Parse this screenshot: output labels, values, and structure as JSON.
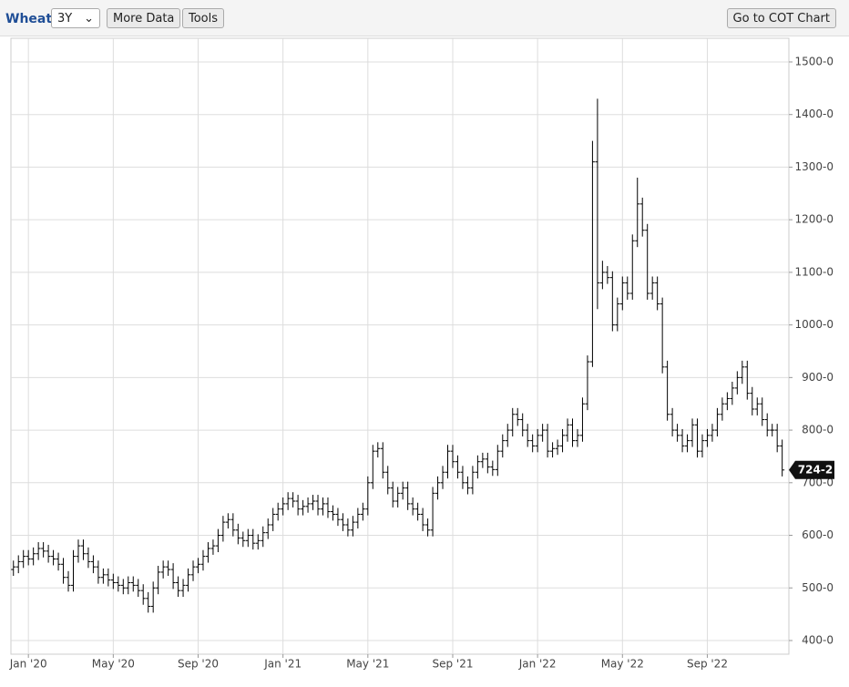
{
  "toolbar": {
    "symbol": "Wheat",
    "range": "3Y",
    "buttons": [
      "More Data",
      "Tools"
    ],
    "cot": "Go to COT Chart"
  },
  "chart_data": {
    "type": "ohlc",
    "categories": [
      null,
      null,
      null,
      "Jan '20",
      null,
      null,
      null,
      null,
      null,
      null,
      null,
      null,
      null,
      null,
      null,
      null,
      null,
      null,
      null,
      null,
      "May '20",
      null,
      null,
      null,
      null,
      null,
      null,
      null,
      null,
      null,
      null,
      null,
      null,
      null,
      null,
      null,
      null,
      "Sep '20",
      null,
      null,
      null,
      null,
      null,
      null,
      null,
      null,
      null,
      null,
      null,
      null,
      null,
      null,
      null,
      null,
      "Jan '21",
      null,
      null,
      null,
      null,
      null,
      null,
      null,
      null,
      null,
      null,
      null,
      null,
      null,
      null,
      null,
      null,
      "May '21",
      null,
      null,
      null,
      null,
      null,
      null,
      null,
      null,
      null,
      null,
      null,
      null,
      null,
      null,
      null,
      null,
      "Sep '21",
      null,
      null,
      null,
      null,
      null,
      null,
      null,
      null,
      null,
      null,
      null,
      null,
      null,
      null,
      null,
      null,
      "Jan '22",
      null,
      null,
      null,
      null,
      null,
      null,
      null,
      null,
      null,
      null,
      null,
      null,
      null,
      null,
      null,
      null,
      "May '22",
      null,
      null,
      null,
      null,
      null,
      null,
      null,
      null,
      null,
      null,
      null,
      null,
      null,
      null,
      null,
      null,
      "Sep '22",
      null,
      null,
      null,
      null,
      null,
      null,
      null,
      null,
      null,
      null,
      null,
      null,
      null,
      null,
      null
    ],
    "open": [
      535,
      540,
      550,
      560,
      555,
      565,
      575,
      570,
      560,
      555,
      545,
      520,
      505,
      560,
      580,
      565,
      550,
      540,
      520,
      525,
      515,
      510,
      505,
      500,
      510,
      505,
      495,
      480,
      465,
      500,
      530,
      540,
      535,
      510,
      495,
      505,
      525,
      540,
      545,
      560,
      575,
      580,
      600,
      625,
      630,
      610,
      595,
      590,
      600,
      585,
      590,
      605,
      620,
      640,
      650,
      660,
      670,
      665,
      650,
      655,
      660,
      665,
      650,
      660,
      645,
      640,
      630,
      620,
      610,
      625,
      640,
      650,
      700,
      760,
      765,
      720,
      690,
      665,
      680,
      690,
      660,
      650,
      640,
      620,
      610,
      680,
      700,
      720,
      760,
      740,
      720,
      700,
      690,
      720,
      740,
      745,
      730,
      725,
      760,
      780,
      800,
      830,
      820,
      800,
      780,
      770,
      790,
      800,
      760,
      765,
      770,
      790,
      810,
      780,
      790,
      850,
      930,
      1310,
      1080,
      1100,
      1090,
      1000,
      1040,
      1080,
      1060,
      1160,
      1230,
      1180,
      1060,
      1080,
      1040,
      920,
      830,
      800,
      790,
      770,
      780,
      810,
      760,
      780,
      790,
      800,
      830,
      850,
      860,
      880,
      900,
      920,
      870,
      840,
      850,
      820,
      800,
      800,
      770
    ],
    "high": [
      552,
      562,
      572,
      572,
      577,
      587,
      587,
      582,
      572,
      567,
      557,
      532,
      572,
      592,
      592,
      577,
      562,
      552,
      537,
      537,
      527,
      522,
      517,
      522,
      522,
      517,
      507,
      492,
      512,
      542,
      552,
      552,
      547,
      522,
      517,
      537,
      552,
      557,
      572,
      587,
      592,
      612,
      637,
      642,
      642,
      622,
      607,
      612,
      612,
      602,
      617,
      632,
      652,
      662,
      672,
      682,
      682,
      677,
      667,
      672,
      677,
      677,
      672,
      672,
      657,
      652,
      642,
      632,
      637,
      652,
      662,
      712,
      772,
      777,
      777,
      732,
      702,
      692,
      702,
      702,
      672,
      662,
      652,
      632,
      692,
      712,
      732,
      772,
      772,
      752,
      732,
      712,
      732,
      752,
      757,
      757,
      742,
      772,
      792,
      812,
      842,
      842,
      832,
      812,
      792,
      802,
      812,
      812,
      777,
      782,
      802,
      822,
      822,
      802,
      862,
      942,
      1350,
      1430,
      1122,
      1112,
      1102,
      1052,
      1092,
      1092,
      1172,
      1280,
      1242,
      1192,
      1092,
      1092,
      1052,
      932,
      842,
      812,
      802,
      792,
      822,
      822,
      792,
      802,
      812,
      842,
      862,
      872,
      892,
      912,
      932,
      932,
      882,
      862,
      862,
      832,
      812,
      812,
      782
    ],
    "low": [
      523,
      528,
      538,
      543,
      543,
      553,
      558,
      548,
      543,
      533,
      508,
      493,
      493,
      548,
      553,
      538,
      528,
      508,
      508,
      503,
      498,
      493,
      488,
      488,
      493,
      483,
      468,
      453,
      453,
      488,
      518,
      523,
      498,
      483,
      483,
      493,
      513,
      528,
      533,
      548,
      563,
      568,
      588,
      613,
      598,
      583,
      578,
      578,
      573,
      573,
      578,
      593,
      608,
      628,
      638,
      648,
      653,
      638,
      638,
      643,
      648,
      638,
      638,
      633,
      628,
      618,
      608,
      598,
      598,
      613,
      628,
      638,
      688,
      748,
      708,
      678,
      653,
      653,
      668,
      648,
      638,
      628,
      608,
      598,
      598,
      668,
      688,
      708,
      728,
      708,
      688,
      678,
      678,
      708,
      728,
      718,
      713,
      713,
      748,
      768,
      788,
      808,
      788,
      768,
      758,
      758,
      778,
      748,
      748,
      753,
      758,
      778,
      768,
      768,
      778,
      838,
      920,
      1030,
      1068,
      1078,
      988,
      988,
      1028,
      1048,
      1048,
      1148,
      1168,
      1048,
      1048,
      1028,
      908,
      818,
      788,
      778,
      758,
      758,
      768,
      748,
      748,
      768,
      778,
      788,
      818,
      838,
      848,
      868,
      888,
      858,
      828,
      828,
      808,
      788,
      788,
      758,
      712
    ],
    "close": [
      540,
      550,
      560,
      555,
      565,
      575,
      570,
      560,
      555,
      545,
      520,
      505,
      560,
      580,
      565,
      550,
      540,
      520,
      525,
      515,
      510,
      505,
      500,
      510,
      505,
      495,
      480,
      465,
      500,
      530,
      540,
      535,
      510,
      495,
      505,
      525,
      540,
      545,
      560,
      575,
      580,
      600,
      625,
      630,
      610,
      595,
      590,
      600,
      585,
      590,
      605,
      620,
      640,
      650,
      660,
      670,
      665,
      650,
      655,
      660,
      665,
      650,
      660,
      645,
      640,
      630,
      620,
      610,
      625,
      640,
      650,
      700,
      760,
      765,
      720,
      690,
      665,
      680,
      690,
      660,
      650,
      640,
      620,
      610,
      680,
      700,
      720,
      760,
      740,
      720,
      700,
      690,
      720,
      740,
      745,
      730,
      725,
      760,
      780,
      800,
      830,
      820,
      800,
      780,
      770,
      790,
      800,
      760,
      765,
      770,
      790,
      810,
      780,
      790,
      850,
      930,
      1310,
      1080,
      1100,
      1090,
      1000,
      1040,
      1080,
      1060,
      1160,
      1230,
      1180,
      1060,
      1080,
      1040,
      920,
      830,
      800,
      790,
      770,
      780,
      810,
      760,
      780,
      790,
      800,
      830,
      850,
      860,
      880,
      900,
      920,
      870,
      840,
      850,
      820,
      800,
      800,
      770,
      724.25
    ],
    "last_label": "724-2",
    "color": "#000000",
    "ylim": [
      374,
      1545
    ],
    "yticks": [
      {
        "value": 400,
        "label": "400-0"
      },
      {
        "value": 500,
        "label": "500-0"
      },
      {
        "value": 600,
        "label": "600-0"
      },
      {
        "value": 700,
        "label": "700-0"
      },
      {
        "value": 800,
        "label": "800-0"
      },
      {
        "value": 900,
        "label": "900-0"
      },
      {
        "value": 1000,
        "label": "1000-0"
      },
      {
        "value": 1100,
        "label": "1100-0"
      },
      {
        "value": 1200,
        "label": "1200-0"
      },
      {
        "value": 1300,
        "label": "1300-0"
      },
      {
        "value": 1400,
        "label": "1400-0"
      },
      {
        "value": 1500,
        "label": "1500-0"
      }
    ],
    "grid": true
  }
}
